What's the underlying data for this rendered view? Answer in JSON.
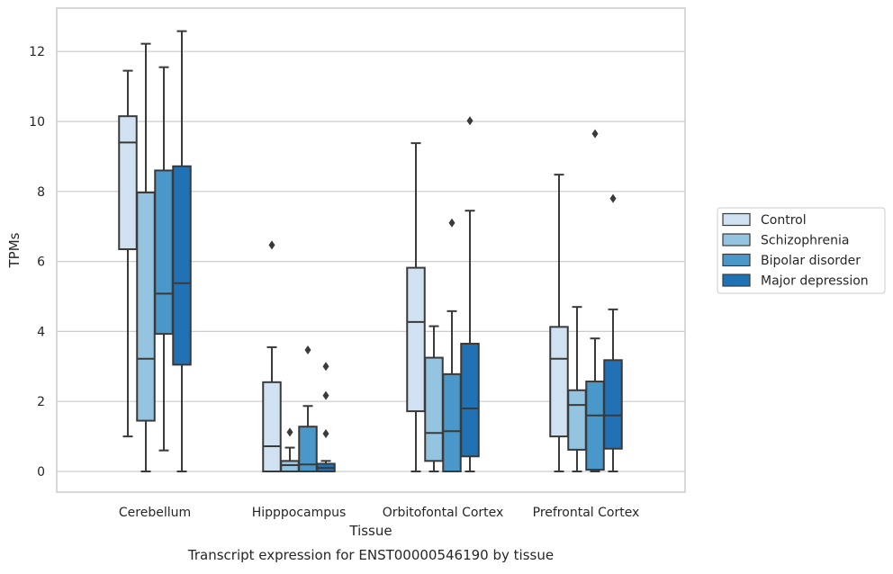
{
  "chart_data": {
    "type": "box",
    "caption": "Transcript expression for ENST00000546190 by tissue",
    "xlabel": "Tissue",
    "ylabel": "TPMs",
    "ylim": [
      -0.6,
      13.2
    ],
    "yticks": [
      0,
      2,
      4,
      6,
      8,
      10,
      12
    ],
    "grid": "horizontal",
    "legend_position": "right",
    "categories": [
      "Cerebellum",
      "Hipppocampus",
      "Orbitofontal Cortex",
      "Prefrontal Cortex"
    ],
    "series": [
      {
        "name": "Control",
        "color": "#d0e1f2",
        "boxes": [
          {
            "whislo": 1.0,
            "q1": 6.35,
            "med": 9.4,
            "q3": 10.15,
            "whishi": 11.45,
            "fliers": []
          },
          {
            "whislo": 0.0,
            "q1": 0.0,
            "med": 0.72,
            "q3": 2.55,
            "whishi": 3.55,
            "fliers": [
              6.47
            ]
          },
          {
            "whislo": 0.0,
            "q1": 1.72,
            "med": 4.27,
            "q3": 5.82,
            "whishi": 9.38,
            "fliers": []
          },
          {
            "whislo": 0.0,
            "q1": 1.0,
            "med": 3.22,
            "q3": 4.13,
            "whishi": 8.48,
            "fliers": []
          }
        ]
      },
      {
        "name": "Schizophrenia",
        "color": "#94c4df",
        "boxes": [
          {
            "whislo": 0.0,
            "q1": 1.45,
            "med": 3.22,
            "q3": 7.97,
            "whishi": 12.22,
            "fliers": []
          },
          {
            "whislo": 0.0,
            "q1": 0.0,
            "med": 0.18,
            "q3": 0.3,
            "whishi": 0.68,
            "fliers": [
              1.12
            ]
          },
          {
            "whislo": 0.0,
            "q1": 0.3,
            "med": 1.1,
            "q3": 3.25,
            "whishi": 4.15,
            "fliers": []
          },
          {
            "whislo": 0.0,
            "q1": 0.62,
            "med": 1.9,
            "q3": 2.32,
            "whishi": 4.7,
            "fliers": []
          }
        ]
      },
      {
        "name": "Bipolar disorder",
        "color": "#4a98c9",
        "boxes": [
          {
            "whislo": 0.6,
            "q1": 3.93,
            "med": 5.08,
            "q3": 8.6,
            "whishi": 11.55,
            "fliers": []
          },
          {
            "whislo": 0.0,
            "q1": 0.0,
            "med": 0.2,
            "q3": 1.28,
            "whishi": 1.87,
            "fliers": [
              3.47
            ]
          },
          {
            "whislo": 0.0,
            "q1": 0.0,
            "med": 1.15,
            "q3": 2.78,
            "whishi": 4.58,
            "fliers": [
              7.1
            ]
          },
          {
            "whislo": 0.0,
            "q1": 0.05,
            "med": 1.6,
            "q3": 2.57,
            "whishi": 3.8,
            "fliers": [
              9.65
            ]
          }
        ]
      },
      {
        "name": "Major depression",
        "color": "#2171b5",
        "boxes": [
          {
            "whislo": 0.0,
            "q1": 3.05,
            "med": 5.38,
            "q3": 8.72,
            "whishi": 12.58,
            "fliers": []
          },
          {
            "whislo": 0.0,
            "q1": 0.0,
            "med": 0.1,
            "q3": 0.22,
            "whishi": 0.3,
            "fliers": [
              3.0,
              2.17,
              1.08
            ]
          },
          {
            "whislo": 0.0,
            "q1": 0.43,
            "med": 1.8,
            "q3": 3.65,
            "whishi": 7.45,
            "fliers": [
              10.02
            ]
          },
          {
            "whislo": 0.0,
            "q1": 0.65,
            "med": 1.6,
            "q3": 3.18,
            "whishi": 4.63,
            "fliers": [
              7.8
            ]
          }
        ]
      }
    ]
  }
}
